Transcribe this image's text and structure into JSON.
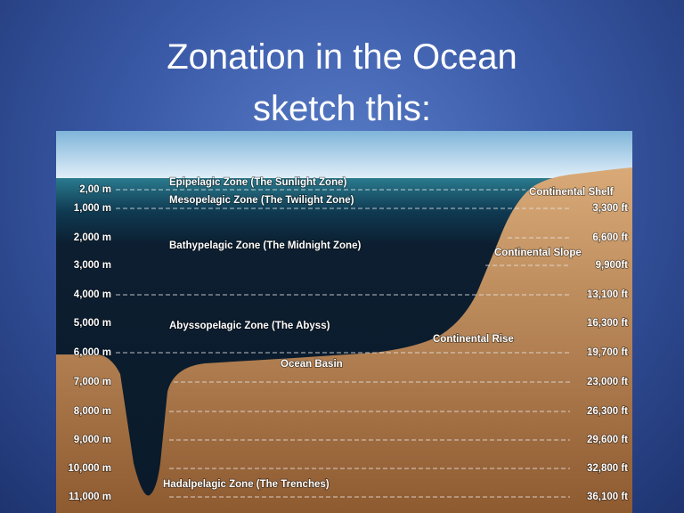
{
  "header": {
    "title": "Zonation in the Ocean",
    "subtitle": "sketch this:"
  },
  "depths": {
    "meters": [
      "2,00 m",
      "1,000 m",
      "2,000 m",
      "3,000 m",
      "4,000 m",
      "5,000 m",
      "6,000 m",
      "7,000 m",
      "8,000 m",
      "9,000 m",
      "10,000 m",
      "11,000 m"
    ],
    "feet": [
      "3,300 ft",
      "6,600 ft",
      "9,900ft",
      "13,100 ft",
      "16,300 ft",
      "19,700 ft",
      "23,000 ft",
      "26,300 ft",
      "29,600 ft",
      "32,800 ft",
      "36,100 ft"
    ]
  },
  "zones": [
    "Epipelagic Zone (The Sunlight Zone)",
    "Mesopelagic Zone (The Twilight Zone)",
    "Bathypelagic Zone (The Midnight Zone)",
    "Abyssopelagic Zone (The Abyss)",
    "Hadalpelagic Zone (The Trenches)"
  ],
  "features": [
    "Continental Shelf",
    "Continental Slope",
    "Continental Rise",
    "Ocean Basin"
  ]
}
